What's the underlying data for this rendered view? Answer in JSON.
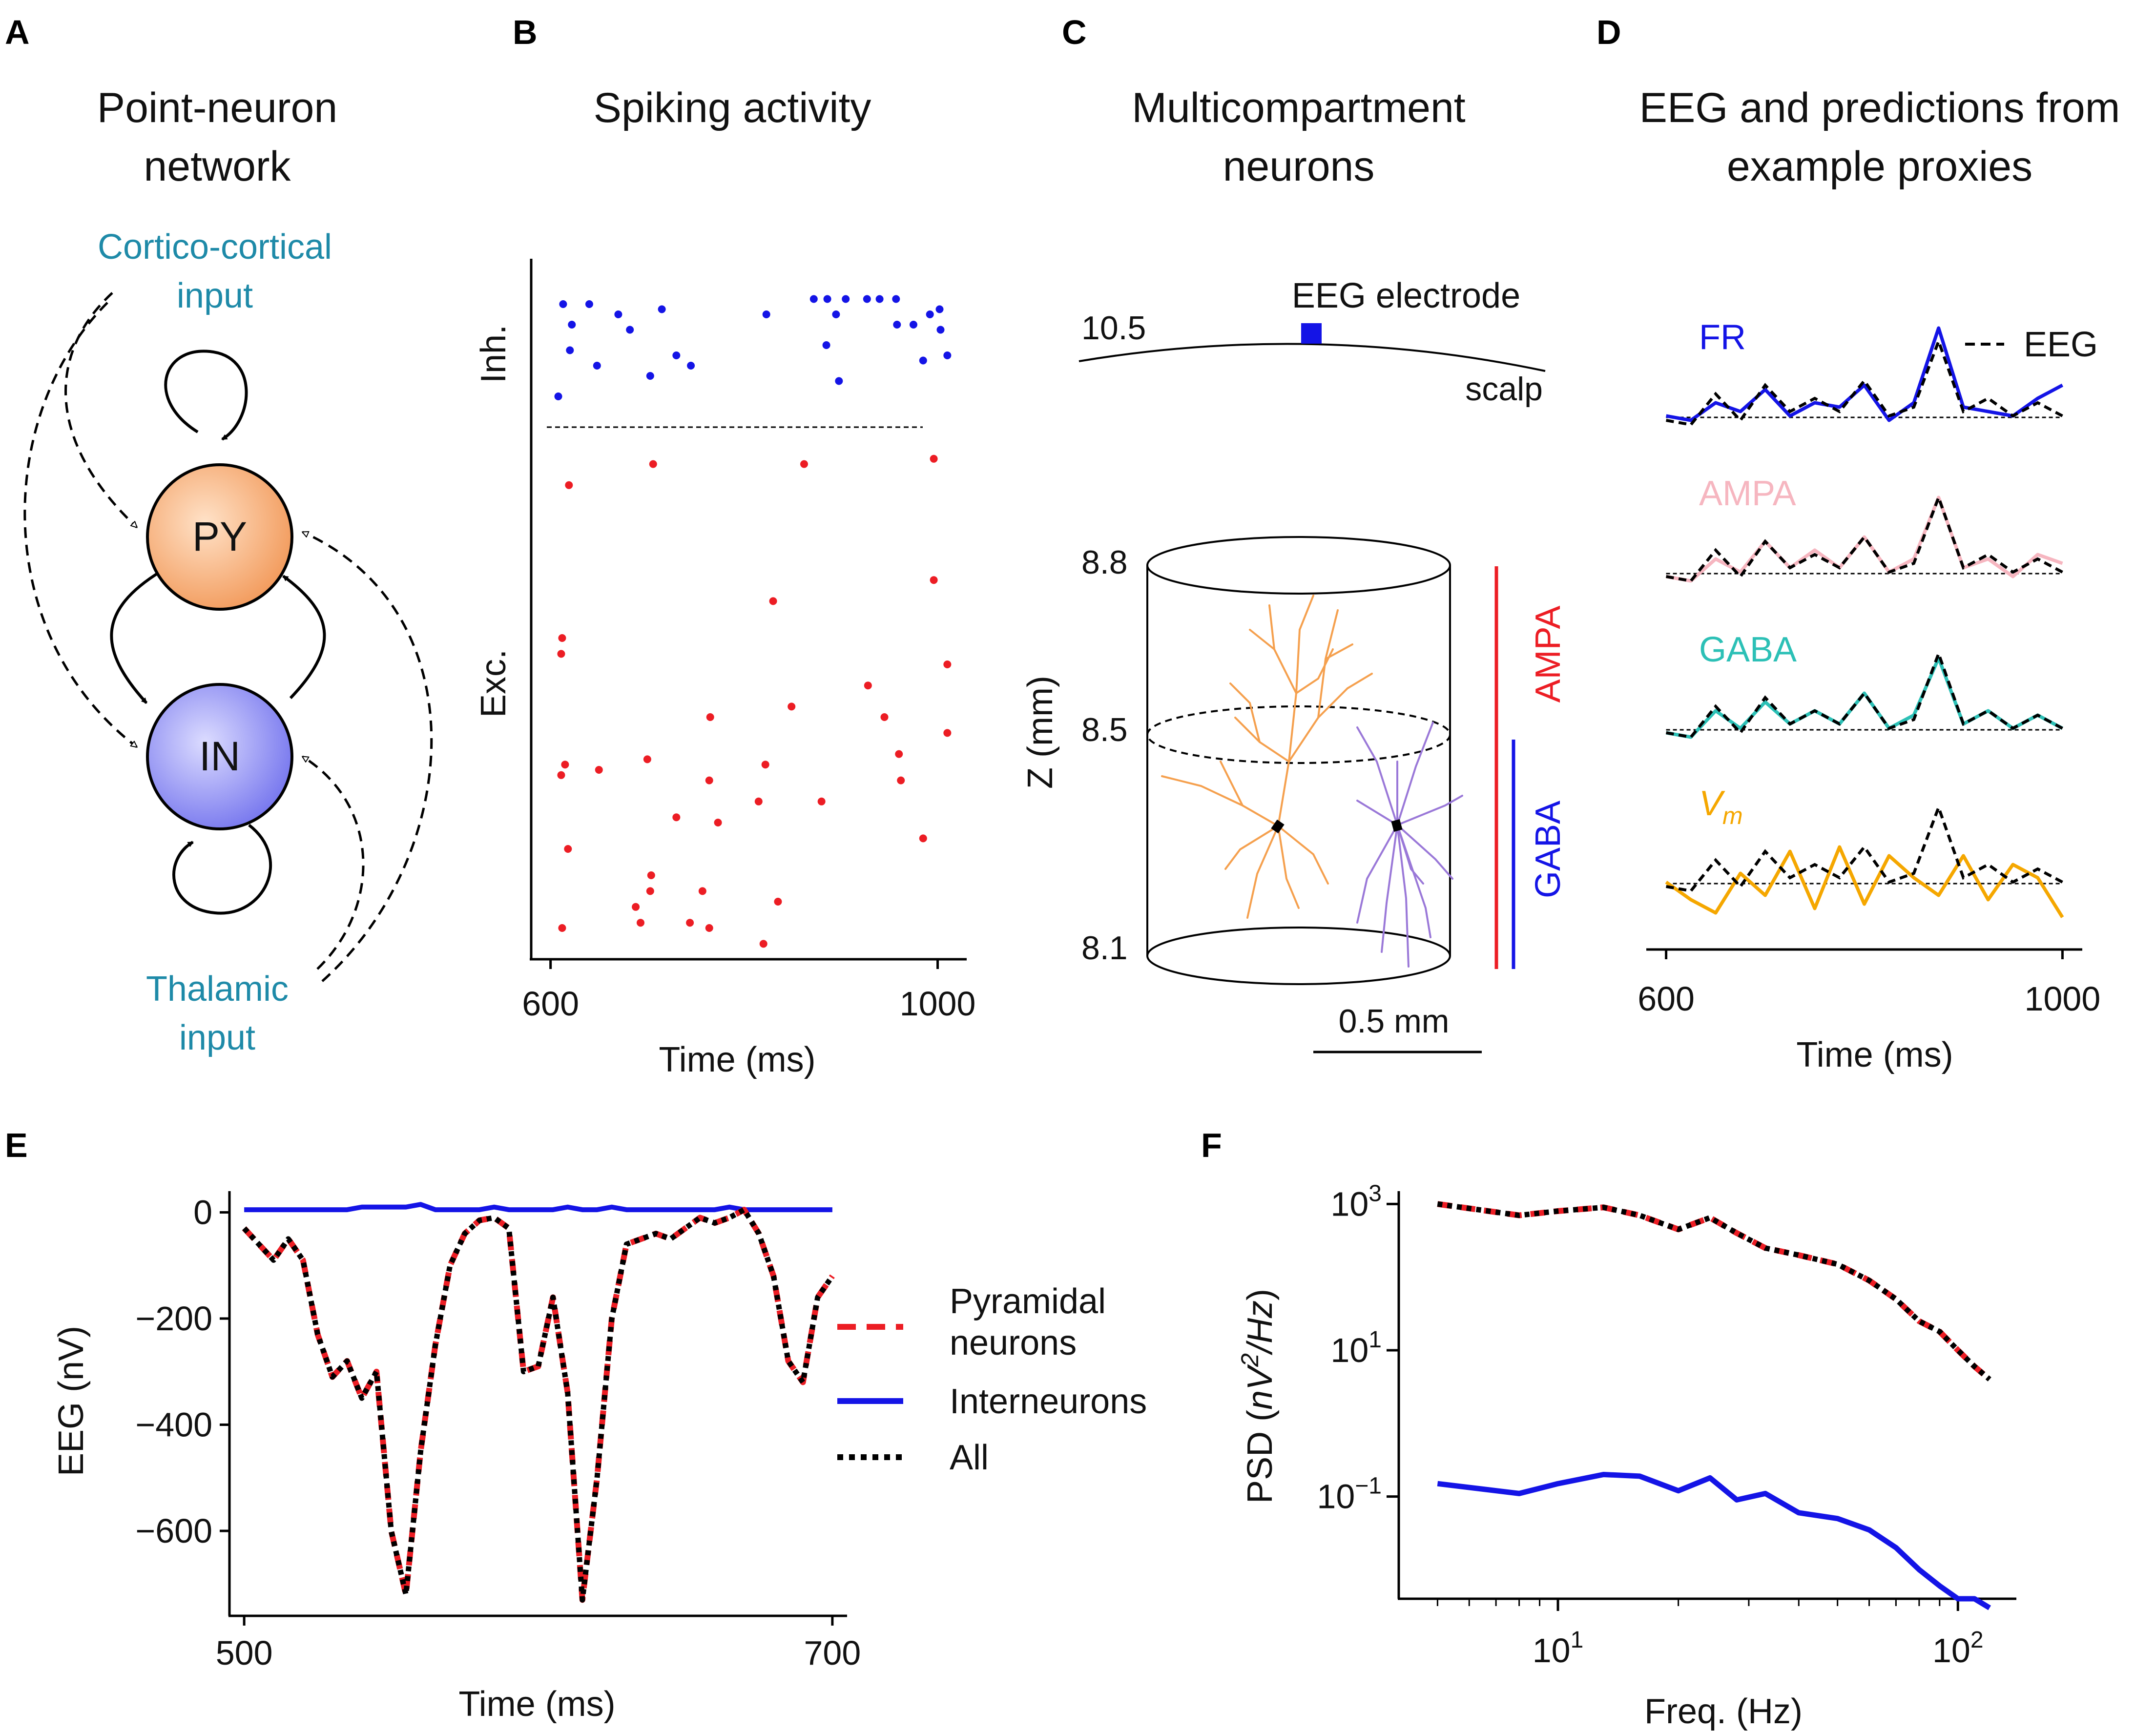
{
  "colors": {
    "blue": "#1414e6",
    "red": "#ec1d24",
    "orange": "#f5a04e",
    "purple": "#9a78d8",
    "pink": "#f6b6c0",
    "teal": "#2cc0b6",
    "vm": "#f5a700",
    "cyan_text": "#1e8aa8",
    "py_fill": "#f5a46b",
    "in_fill": "#8b8bf2"
  },
  "panels": {
    "A": {
      "letter": "A",
      "title_line1": "Point-neuron",
      "title_line2": "network",
      "cortico_line1": "Cortico-cortical",
      "cortico_line2": "input",
      "py_label": "PY",
      "in_label": "IN",
      "thalamic_line1": "Thalamic",
      "thalamic_line2": "input"
    },
    "B": {
      "letter": "B",
      "title": "Spiking activity",
      "inh_label": "Inh.",
      "exc_label": "Exc.",
      "xlabel": "Time (ms)",
      "xticks": [
        "600",
        "1000"
      ]
    },
    "C": {
      "letter": "C",
      "title_line1": "Multicompartment",
      "title_line2": "neurons",
      "electrode_label": "EEG electrode",
      "scalp_label": "scalp",
      "z_scalp": "10.5",
      "z_ticks": [
        "8.8",
        "8.5",
        "8.1"
      ],
      "ylabel": "Z (mm)",
      "ampa_label": "AMPA",
      "gaba_label": "GABA",
      "scale_label": "0.5 mm"
    },
    "D": {
      "letter": "D",
      "title_line1": "EEG and predictions from",
      "title_line2": "example proxies",
      "legend_eeg": "EEG",
      "xlabel": "Time (ms)",
      "xticks": [
        "600",
        "1000"
      ],
      "proxies": [
        {
          "name": "FR",
          "color": "#1414e6"
        },
        {
          "name": "AMPA",
          "color": "#f6b6c0"
        },
        {
          "name": "GABA",
          "color": "#2cc0b6"
        },
        {
          "name": "V",
          "sub": "m",
          "color": "#f5a700"
        }
      ]
    },
    "E": {
      "letter": "E",
      "ylabel": "EEG (nV)",
      "xlabel": "Time (ms)",
      "legend": [
        "Pyramidal",
        "neurons",
        "Interneurons",
        "All"
      ]
    },
    "F": {
      "letter": "F",
      "ylabel": "PSD (nV²/Hz)",
      "xlabel": "Freq. (Hz)"
    }
  },
  "chart_data": [
    {
      "panel": "B",
      "type": "scatter",
      "title": "Spiking activity",
      "xlabel": "Time (ms)",
      "xlim": [
        580,
        1030
      ],
      "xticks": [
        600,
        1000
      ],
      "series": [
        {
          "name": "Inh.",
          "points": [
            [
              613,
              2.4
            ],
            [
              682,
              1.9
            ],
            [
              640,
              2.4
            ],
            [
              703,
              1.0
            ],
            [
              608,
              0.6
            ],
            [
              620,
              1.5
            ],
            [
              622,
              2.0
            ],
            [
              648,
              1.2
            ],
            [
              670,
              2.2
            ],
            [
              715,
              2.3
            ],
            [
              730,
              1.4
            ],
            [
              745,
              1.2
            ],
            [
              823,
              2.2
            ],
            [
              872,
              2.5
            ],
            [
              886,
              2.5
            ],
            [
              895,
              2.2
            ],
            [
              905,
              2.5
            ],
            [
              927,
              2.5
            ],
            [
              940,
              2.5
            ],
            [
              957,
              2.5
            ],
            [
              958,
              2.0
            ],
            [
              975,
              2.0
            ],
            [
              985,
              1.3
            ],
            [
              992,
              2.2
            ],
            [
              1002,
              2.3
            ],
            [
              1003,
              1.9
            ],
            [
              1010,
              1.4
            ],
            [
              898,
              0.9
            ],
            [
              885,
              1.6
            ]
          ]
        },
        {
          "name": "Exc.",
          "points": [
            [
              612,
              0.5
            ],
            [
              618,
              2.0
            ],
            [
              611,
              3.4
            ],
            [
              615,
              3.6
            ],
            [
              611,
              5.7
            ],
            [
              612,
              6.0
            ],
            [
              619,
              8.9
            ],
            [
              650,
              3.5
            ],
            [
              688,
              0.9
            ],
            [
              693,
              0.6
            ],
            [
              700,
              3.7
            ],
            [
              703,
              1.2
            ],
            [
              704,
              1.5
            ],
            [
              706,
              9.3
            ],
            [
              730,
              2.6
            ],
            [
              744,
              0.6
            ],
            [
              757,
              1.2
            ],
            [
              764,
              0.5
            ],
            [
              764,
              3.3
            ],
            [
              765,
              4.5
            ],
            [
              773,
              2.5
            ],
            [
              815,
              2.9
            ],
            [
              820,
              0.2
            ],
            [
              822,
              3.6
            ],
            [
              830,
              6.7
            ],
            [
              835,
              1.0
            ],
            [
              849,
              4.7
            ],
            [
              862,
              9.3
            ],
            [
              880,
              2.9
            ],
            [
              928,
              5.1
            ],
            [
              945,
              4.5
            ],
            [
              960,
              3.8
            ],
            [
              962,
              3.3
            ],
            [
              985,
              2.2
            ],
            [
              996,
              9.4
            ],
            [
              996,
              7.1
            ],
            [
              1010,
              5.5
            ],
            [
              1010,
              4.2
            ]
          ]
        }
      ]
    },
    {
      "panel": "D",
      "type": "line",
      "xlabel": "Time (ms)",
      "xlim": [
        580,
        1020
      ],
      "xticks": [
        600,
        1000
      ],
      "x": [
        600,
        625,
        650,
        675,
        700,
        725,
        750,
        775,
        800,
        825,
        850,
        875,
        900,
        925,
        950,
        975,
        1000
      ],
      "series": [
        {
          "name": "EEG",
          "values": [
            0.1,
            0.0,
            0.7,
            0.1,
            0.9,
            0.3,
            0.6,
            0.3,
            1.0,
            0.2,
            0.4,
            1.9,
            0.3,
            0.6,
            0.2,
            0.5,
            0.2
          ]
        },
        {
          "name": "FR",
          "values": [
            0.2,
            0.1,
            0.5,
            0.3,
            0.8,
            0.2,
            0.5,
            0.4,
            0.9,
            0.1,
            0.5,
            2.2,
            0.4,
            0.3,
            0.2,
            0.6,
            0.9
          ]
        },
        {
          "name": "AMPA",
          "values": [
            0.1,
            0.0,
            0.5,
            0.2,
            0.9,
            0.3,
            0.7,
            0.3,
            1.0,
            0.2,
            0.5,
            1.9,
            0.3,
            0.5,
            0.1,
            0.6,
            0.4
          ]
        },
        {
          "name": "GABA",
          "values": [
            0.1,
            0.0,
            0.6,
            0.2,
            0.8,
            0.3,
            0.6,
            0.3,
            1.0,
            0.2,
            0.5,
            1.8,
            0.3,
            0.6,
            0.2,
            0.5,
            0.2
          ]
        },
        {
          "name": "Vm",
          "values": [
            0.2,
            -0.2,
            -0.5,
            0.4,
            -0.1,
            0.9,
            -0.4,
            1.0,
            -0.3,
            0.8,
            0.3,
            -0.1,
            0.8,
            -0.2,
            0.6,
            0.3,
            -0.6
          ]
        }
      ]
    },
    {
      "panel": "E",
      "type": "line",
      "xlabel": "Time (ms)",
      "ylabel": "EEG (nV)",
      "xlim": [
        495,
        705
      ],
      "ylim": [
        -760,
        40
      ],
      "xticks": [
        500,
        700
      ],
      "yticks": [
        0,
        -200,
        -400,
        -600
      ],
      "x": [
        500,
        505,
        510,
        515,
        520,
        525,
        530,
        535,
        540,
        545,
        550,
        555,
        560,
        565,
        570,
        575,
        580,
        585,
        590,
        595,
        600,
        605,
        610,
        615,
        620,
        625,
        630,
        635,
        640,
        645,
        650,
        655,
        660,
        665,
        670,
        675,
        680,
        685,
        690,
        695,
        700
      ],
      "series": [
        {
          "name": "Pyramidal neurons",
          "values": [
            -30,
            -60,
            -90,
            -50,
            -90,
            -230,
            -310,
            -280,
            -350,
            -300,
            -600,
            -720,
            -450,
            -250,
            -100,
            -40,
            -15,
            -10,
            -30,
            -300,
            -290,
            -160,
            -340,
            -730,
            -500,
            -200,
            -60,
            -50,
            -40,
            -50,
            -30,
            -10,
            -20,
            -10,
            5,
            -40,
            -120,
            -280,
            -320,
            -160,
            -120
          ]
        },
        {
          "name": "Interneurons",
          "values": [
            5,
            5,
            5,
            5,
            5,
            5,
            5,
            5,
            10,
            10,
            10,
            10,
            15,
            5,
            5,
            5,
            5,
            10,
            5,
            5,
            5,
            5,
            10,
            5,
            5,
            10,
            5,
            5,
            5,
            5,
            5,
            5,
            5,
            10,
            5,
            5,
            5,
            5,
            5,
            5,
            5
          ]
        },
        {
          "name": "All",
          "values": [
            -30,
            -60,
            -90,
            -50,
            -90,
            -230,
            -310,
            -280,
            -350,
            -300,
            -600,
            -720,
            -450,
            -250,
            -100,
            -40,
            -15,
            -10,
            -30,
            -300,
            -290,
            -160,
            -340,
            -730,
            -500,
            -200,
            -60,
            -50,
            -40,
            -50,
            -30,
            -10,
            -20,
            -10,
            5,
            -40,
            -120,
            -280,
            -320,
            -160,
            -120
          ]
        }
      ]
    },
    {
      "panel": "F",
      "type": "line",
      "xlabel": "Freq. (Hz)",
      "ylabel": "PSD (nV²/Hz)",
      "xscale": "log",
      "yscale": "log",
      "xticks": [
        "10^1",
        "10^2"
      ],
      "yticks": [
        "10^3",
        "10^1",
        "10^-1"
      ],
      "x": [
        5,
        8,
        10,
        13,
        16,
        20,
        24,
        28,
        33,
        40,
        50,
        60,
        70,
        80,
        90,
        100,
        110,
        120
      ],
      "series": [
        {
          "name": "Pyramidal neurons",
          "values": [
            1000,
            700,
            800,
            900,
            700,
            450,
            650,
            400,
            250,
            200,
            150,
            90,
            50,
            25,
            18,
            10,
            6,
            4
          ]
        },
        {
          "name": "Interneurons",
          "values": [
            0.15,
            0.11,
            0.15,
            0.2,
            0.19,
            0.12,
            0.18,
            0.09,
            0.11,
            0.06,
            0.05,
            0.035,
            0.02,
            0.01,
            0.006,
            0.004,
            0.004,
            0.003
          ]
        },
        {
          "name": "All",
          "values": [
            1000,
            700,
            800,
            900,
            700,
            450,
            650,
            400,
            250,
            200,
            150,
            90,
            50,
            25,
            18,
            10,
            6,
            4
          ]
        }
      ]
    }
  ]
}
